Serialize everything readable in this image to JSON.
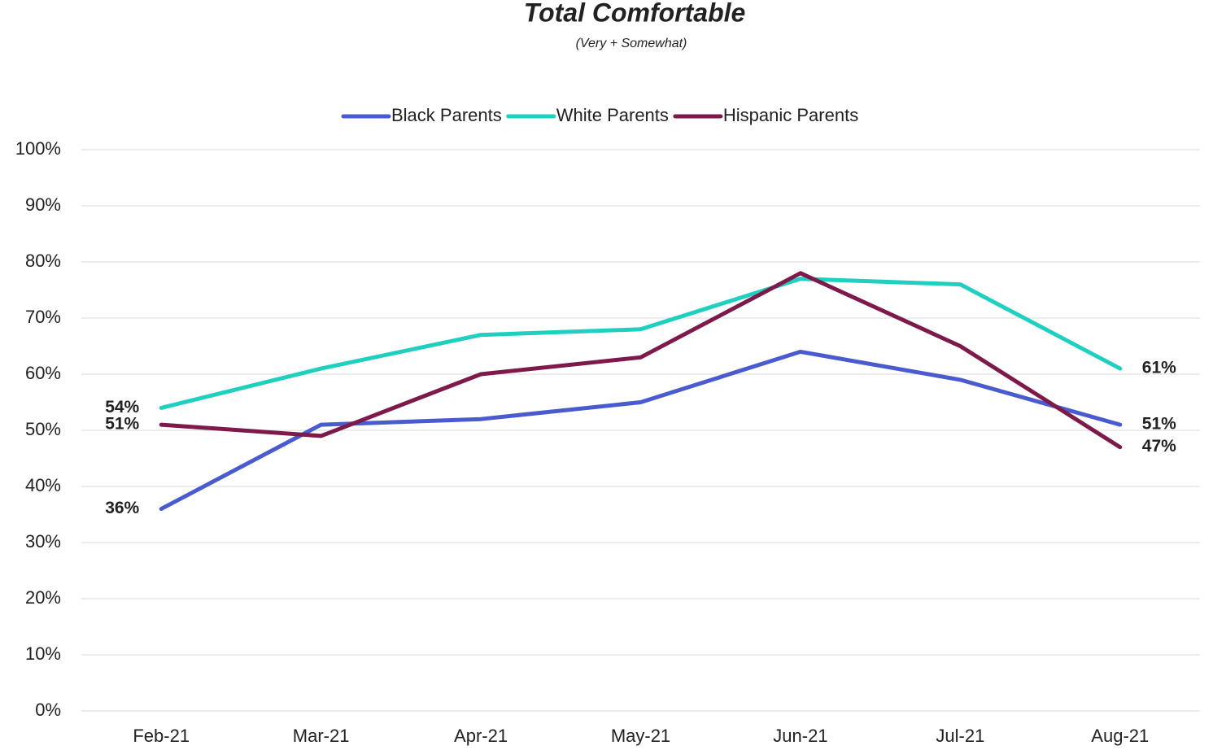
{
  "chart_data": {
    "type": "line",
    "title": "Total Comfortable",
    "subtitle": "(Very + Somewhat)",
    "categories": [
      "Feb-21",
      "Mar-21",
      "Apr-21",
      "May-21",
      "Jun-21",
      "Jul-21",
      "Aug-21"
    ],
    "series": [
      {
        "name": "Black Parents",
        "color": "#4a5bcf",
        "values": [
          36,
          51,
          52,
          55,
          64,
          59,
          51
        ],
        "value_labels": [
          "36%",
          null,
          null,
          null,
          null,
          null,
          "51%"
        ]
      },
      {
        "name": "White Parents",
        "color": "#1fd0c0",
        "values": [
          54,
          61,
          67,
          68,
          77,
          76,
          61
        ],
        "value_labels": [
          "54%",
          null,
          null,
          null,
          null,
          null,
          "61%"
        ]
      },
      {
        "name": "Hispanic Parents",
        "color": "#7d1a4a",
        "values": [
          51,
          49,
          60,
          63,
          78,
          65,
          47
        ],
        "value_labels": [
          "51%",
          null,
          null,
          null,
          null,
          null,
          "47%"
        ]
      }
    ],
    "ylim": [
      0,
      100
    ],
    "yticks": [
      {
        "value": 0,
        "label": "0%"
      },
      {
        "value": 10,
        "label": "10%"
      },
      {
        "value": 20,
        "label": "20%"
      },
      {
        "value": 30,
        "label": "30%"
      },
      {
        "value": 40,
        "label": "40%"
      },
      {
        "value": 50,
        "label": "50%"
      },
      {
        "value": 60,
        "label": "60%"
      },
      {
        "value": 70,
        "label": "70%"
      },
      {
        "value": 80,
        "label": "80%"
      },
      {
        "value": 90,
        "label": "90%"
      },
      {
        "value": 100,
        "label": "100%"
      }
    ],
    "grid": true,
    "legend": "top"
  }
}
